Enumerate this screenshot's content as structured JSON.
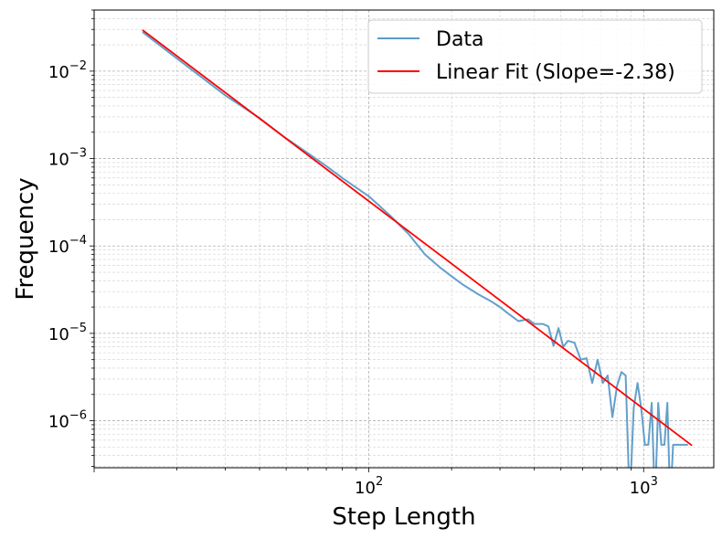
{
  "chart_data": {
    "type": "line",
    "xlabel": "Step Length",
    "ylabel": "Frequency",
    "xscale": "log",
    "yscale": "log",
    "xlim": [
      10,
      1800
    ],
    "ylim": [
      2.9e-07,
      0.05
    ],
    "grid": "both (major and minor), dashed",
    "legend_position": "upper right",
    "x_ticks": [
      {
        "value": 100,
        "base": "10",
        "exp": "2"
      },
      {
        "value": 1000,
        "base": "10",
        "exp": "3"
      }
    ],
    "y_ticks": [
      {
        "value": 0.01,
        "base": "10",
        "exp": "−2"
      },
      {
        "value": 0.001,
        "base": "10",
        "exp": "−3"
      },
      {
        "value": 0.0001,
        "base": "10",
        "exp": "−4"
      },
      {
        "value": 1e-05,
        "base": "10",
        "exp": "−5"
      },
      {
        "value": 1e-06,
        "base": "10",
        "exp": "−6"
      }
    ],
    "series": [
      {
        "name": "Data",
        "color": "#5b9bc7",
        "x": [
          15,
          20,
          25,
          30,
          40,
          50,
          60,
          70,
          80,
          100,
          120,
          140,
          160,
          180,
          200,
          220,
          250,
          280,
          300,
          320,
          350,
          380,
          400,
          430,
          450,
          470,
          490,
          510,
          530,
          560,
          590,
          620,
          650,
          680,
          710,
          740,
          770,
          800,
          830,
          860,
          890,
          920,
          950,
          980,
          1010,
          1040,
          1070,
          1100,
          1130,
          1160,
          1190,
          1220,
          1250,
          1280,
          1310,
          1340,
          1370,
          1400,
          1450
        ],
        "y": [
          0.028,
          0.014,
          0.0082,
          0.0053,
          0.0029,
          0.0017,
          0.00115,
          0.00082,
          0.0006,
          0.00037,
          0.00022,
          0.000135,
          8e-05,
          5.8e-05,
          4.5e-05,
          3.6e-05,
          2.8e-05,
          2.3e-05,
          2e-05,
          1.7e-05,
          1.38e-05,
          1.45e-05,
          1.28e-05,
          1.28e-05,
          1.2e-05,
          7.2e-06,
          1.15e-05,
          7e-06,
          8.2e-06,
          7.8e-06,
          5e-06,
          5.2e-06,
          2.7e-06,
          5e-06,
          2.7e-06,
          3.3e-06,
          1.1e-06,
          2.5e-06,
          3.6e-06,
          3.3e-06,
          1e-09,
          1.4e-06,
          2.7e-06,
          1.4e-06,
          5.3e-07,
          5.3e-07,
          1.6e-06,
          1e-09,
          1.6e-06,
          5.3e-07,
          5.3e-07,
          1.6e-06,
          1e-09,
          5.3e-07,
          5.3e-07,
          5.3e-07,
          5.3e-07,
          5.3e-07,
          5.3e-07
        ]
      },
      {
        "name": "Linear Fit (Slope=-2.38)",
        "color": "#ff0000",
        "x": [
          15,
          1500
        ],
        "y": [
          0.0296,
          5.2e-07
        ]
      }
    ]
  }
}
